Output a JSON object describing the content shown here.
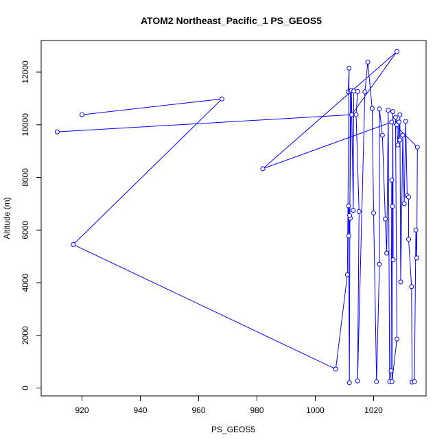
{
  "chart_data": {
    "type": "line",
    "title": "ATOM2 Northeast_Pacific_1 PS_GEOS5",
    "xlabel": "PS_GEOS5",
    "ylabel": "Altitude (m)",
    "xlim": [
      906,
      1038
    ],
    "ylim": [
      -300,
      13200
    ],
    "xticks": [
      920,
      940,
      960,
      980,
      1000,
      1020
    ],
    "yticks": [
      0,
      2000,
      4000,
      6000,
      8000,
      10000,
      12000
    ],
    "series_color": "#0000ff",
    "markers": "open-circle",
    "points": [
      [
        920.0,
        10380
      ],
      [
        968.0,
        10980
      ],
      [
        917.0,
        5450
      ],
      [
        1007.0,
        720
      ],
      [
        1011.0,
        4300
      ],
      [
        1011.6,
        12150
      ],
      [
        1011.3,
        11250
      ],
      [
        1012.0,
        11280
      ],
      [
        1011.7,
        200
      ],
      [
        1011.4,
        6920
      ],
      [
        1012.0,
        6450
      ],
      [
        1011.5,
        5780
      ],
      [
        1011.8,
        6550
      ],
      [
        1012.4,
        11300
      ],
      [
        1013.0,
        6750
      ],
      [
        1013.2,
        11280
      ],
      [
        1014.5,
        11260
      ],
      [
        1014.0,
        10380
      ],
      [
        1015.0,
        6700
      ],
      [
        1014.5,
        270
      ],
      [
        1017.0,
        11250
      ],
      [
        1018.0,
        12380
      ],
      [
        1019.5,
        10620
      ],
      [
        1020.0,
        6650
      ],
      [
        1021.0,
        240
      ],
      [
        1022.0,
        4700
      ],
      [
        1022.0,
        10600
      ],
      [
        1023.0,
        9600
      ],
      [
        1024.0,
        6420
      ],
      [
        1024.5,
        5120
      ],
      [
        1025.0,
        10550
      ],
      [
        1025.5,
        240
      ],
      [
        1026.0,
        650
      ],
      [
        1026.2,
        7900
      ],
      [
        1026.5,
        6900
      ],
      [
        1026.7,
        4870
      ],
      [
        1026.6,
        10500
      ],
      [
        1026.3,
        240
      ],
      [
        1028.0,
        1860
      ],
      [
        1027.5,
        10280
      ],
      [
        1028.0,
        10000
      ],
      [
        1028.3,
        9230
      ],
      [
        1028.7,
        10100
      ],
      [
        1029.0,
        9420
      ],
      [
        1029.0,
        10380
      ],
      [
        1029.3,
        4030
      ],
      [
        1030.0,
        9600
      ],
      [
        1030.5,
        7000
      ],
      [
        1031.0,
        10130
      ],
      [
        1031.5,
        7300
      ],
      [
        1032.0,
        7250
      ],
      [
        1032.0,
        5650
      ],
      [
        1033.0,
        3850
      ],
      [
        1033.2,
        220
      ],
      [
        1034.0,
        240
      ],
      [
        1034.5,
        6000
      ],
      [
        1034.8,
        4940
      ],
      [
        1035.0,
        9150
      ],
      [
        1026.2,
        10100
      ],
      [
        982.0,
        8330
      ],
      [
        1028.0,
        12780
      ],
      [
        1012.5,
        10380
      ],
      [
        911.5,
        9730
      ]
    ]
  }
}
